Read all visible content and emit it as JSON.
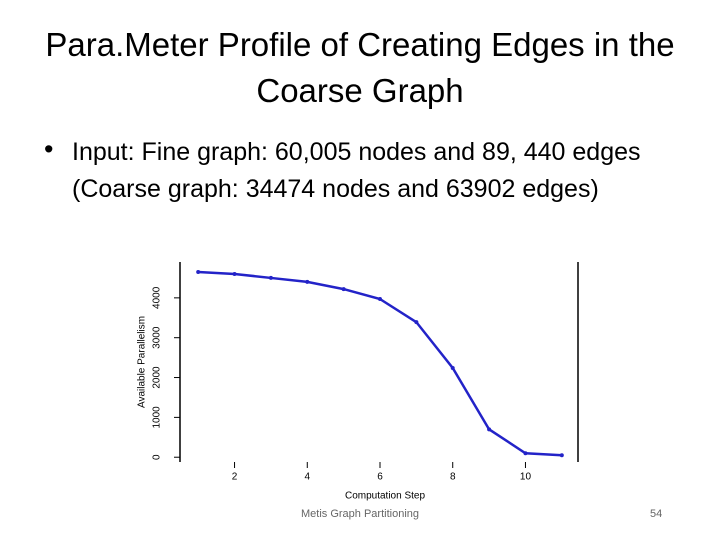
{
  "slide": {
    "title": "Para.Meter Profile of Creating Edges in the Coarse Graph",
    "bullet": "Input: Fine graph: 60,005 nodes and 89, 440 edges (Coarse graph: 34474 nodes and 63902 edges)",
    "footer": "Metis Graph Partitioning",
    "page_number": "54"
  },
  "chart_data": {
    "type": "line",
    "x_label": "Computation Step",
    "y_label": "Available Parallelism",
    "x": [
      1,
      2,
      3,
      4,
      5,
      6,
      7,
      8,
      9,
      10,
      11
    ],
    "series": [
      {
        "name": "Available Parallelism",
        "color": "#2323c8",
        "values": [
          4650,
          4600,
          4500,
          4400,
          4220,
          3970,
          3390,
          2240,
          700,
          100,
          50
        ]
      }
    ],
    "xlim": [
      0.5,
      11.5
    ],
    "xticks": [
      2,
      4,
      6,
      8,
      10
    ],
    "ylim": [
      -120,
      4900
    ],
    "yticks": [
      0,
      1000,
      2000,
      3000,
      4000
    ]
  }
}
